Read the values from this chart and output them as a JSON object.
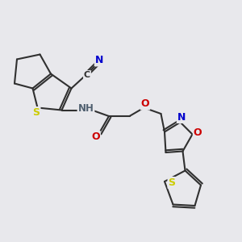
{
  "bg_color": "#e8e8ec",
  "atom_colors": {
    "C": "#303030",
    "N": "#0000cc",
    "S": "#cccc00",
    "O": "#cc0000",
    "H": "#506070"
  },
  "bond_color": "#303030",
  "bond_width": 1.5,
  "figsize": [
    3.0,
    3.0
  ],
  "dpi": 100,
  "xlim": [
    0,
    10
  ],
  "ylim": [
    0,
    10
  ]
}
